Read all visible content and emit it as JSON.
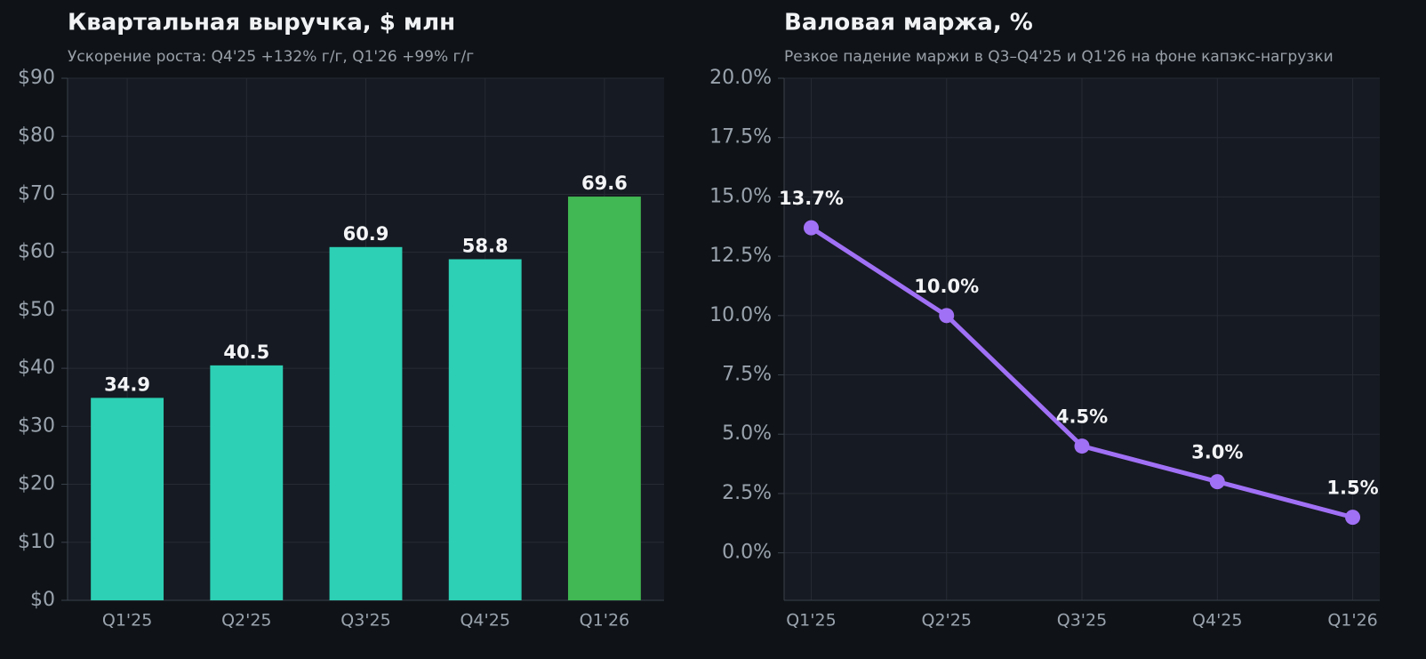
{
  "chart_data": [
    {
      "type": "bar",
      "title": "Квартальная выручка, $ млн",
      "subtitle": "Ускорение роста: Q4'25 +132% г/г, Q1'26 +99% г/г",
      "categories": [
        "Q1'25",
        "Q2'25",
        "Q3'25",
        "Q4'25",
        "Q1'26"
      ],
      "values": [
        34.9,
        40.5,
        60.9,
        58.8,
        69.6
      ],
      "colors": [
        "#2dd0b4",
        "#2dd0b4",
        "#2dd0b4",
        "#2dd0b4",
        "#41b853"
      ],
      "ylim": [
        0,
        90
      ],
      "yticks": [
        {
          "value": 0,
          "label": "$0"
        },
        {
          "value": 10,
          "label": "$10"
        },
        {
          "value": 20,
          "label": "$20"
        },
        {
          "value": 30,
          "label": "$30"
        },
        {
          "value": 40,
          "label": "$40"
        },
        {
          "value": 50,
          "label": "$50"
        },
        {
          "value": 60,
          "label": "$60"
        },
        {
          "value": 70,
          "label": "$70"
        },
        {
          "value": 80,
          "label": "$80"
        },
        {
          "value": 90,
          "label": "$90"
        }
      ],
      "grid": true
    },
    {
      "type": "line",
      "title": "Валовая маржа, %",
      "subtitle": "Резкое падение маржи в Q3–Q4'25 и Q1'26 на фоне капэкс-нагрузки",
      "categories": [
        "Q1'25",
        "Q2'25",
        "Q3'25",
        "Q4'25",
        "Q1'26"
      ],
      "values": [
        13.7,
        10.0,
        4.5,
        3.0,
        1.5
      ],
      "value_labels": [
        "13.7%",
        "10.0%",
        "4.5%",
        "3.0%",
        "1.5%"
      ],
      "color": "#a070f5",
      "ylim": [
        -2.0,
        20.0
      ],
      "yticks": [
        {
          "value": 0,
          "label": "0.0%"
        },
        {
          "value": 2.5,
          "label": "2.5%"
        },
        {
          "value": 5,
          "label": "5.0%"
        },
        {
          "value": 7.5,
          "label": "7.5%"
        },
        {
          "value": 10,
          "label": "10.0%"
        },
        {
          "value": 12.5,
          "label": "12.5%"
        },
        {
          "value": 15,
          "label": "15.0%"
        },
        {
          "value": 17.5,
          "label": "17.5%"
        },
        {
          "value": 20,
          "label": "20.0%"
        }
      ],
      "grid": true
    }
  ]
}
